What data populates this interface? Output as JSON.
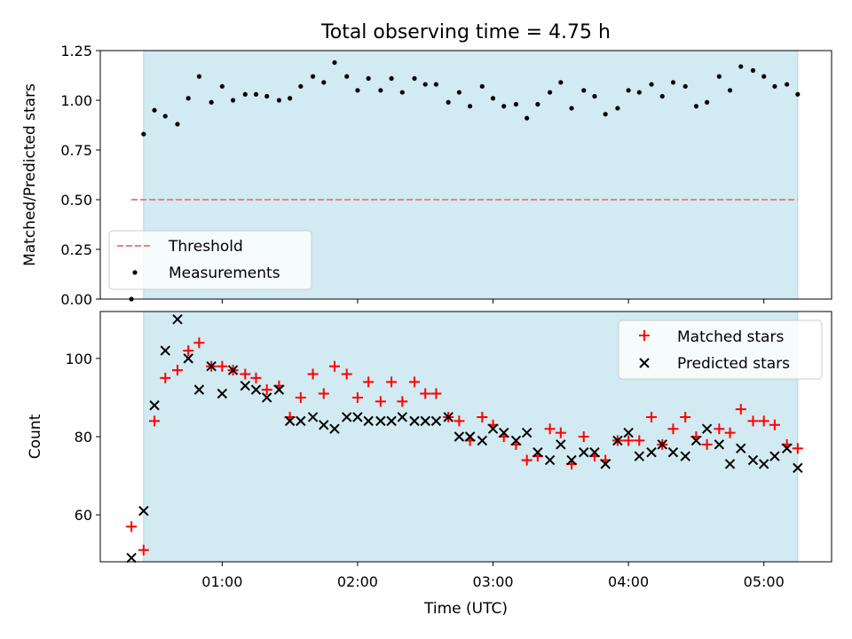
{
  "title": "Total observing time = 4.75 h",
  "colors": {
    "span": "#add8e6",
    "threshold": "#f08080",
    "measurement": "#000000",
    "matched": "#ff0000",
    "predicted": "#000000"
  },
  "chart_data": [
    {
      "type": "scatter",
      "panel": "top",
      "ylabel": "Matched/Predicted stars",
      "xlabel": "",
      "x_unit": "hours (UTC)",
      "xlim": [
        0.1,
        5.5
      ],
      "ylim": [
        0.0,
        1.25
      ],
      "yticks": [
        "0.00",
        "0.25",
        "0.50",
        "0.75",
        "1.00",
        "1.25"
      ],
      "shaded_span": [
        0.42,
        5.25
      ],
      "threshold": {
        "name": "Threshold",
        "y": 0.5,
        "x_range": [
          0.33,
          5.25
        ]
      },
      "legend": {
        "placement": "lower-left",
        "entries": [
          "Threshold",
          "Measurements"
        ]
      },
      "series": [
        {
          "name": "Measurements",
          "x": [
            0.33,
            0.42,
            0.5,
            0.58,
            0.67,
            0.75,
            0.83,
            0.92,
            1.0,
            1.08,
            1.17,
            1.25,
            1.33,
            1.42,
            1.5,
            1.58,
            1.67,
            1.75,
            1.83,
            1.92,
            2.0,
            2.08,
            2.17,
            2.25,
            2.33,
            2.42,
            2.5,
            2.58,
            2.67,
            2.75,
            2.83,
            2.92,
            3.0,
            3.08,
            3.17,
            3.25,
            3.33,
            3.42,
            3.5,
            3.58,
            3.67,
            3.75,
            3.83,
            3.92,
            4.0,
            4.08,
            4.17,
            4.25,
            4.33,
            4.42,
            4.5,
            4.58,
            4.67,
            4.75,
            4.83,
            4.92,
            5.0,
            5.08,
            5.17,
            5.25
          ],
          "y": [
            0.0,
            0.83,
            0.95,
            0.92,
            0.88,
            1.01,
            1.12,
            0.99,
            1.07,
            1.0,
            1.03,
            1.03,
            1.02,
            1.0,
            1.01,
            1.07,
            1.12,
            1.09,
            1.19,
            1.12,
            1.05,
            1.11,
            1.05,
            1.11,
            1.04,
            1.11,
            1.08,
            1.08,
            0.99,
            1.04,
            0.97,
            1.07,
            1.01,
            0.97,
            0.98,
            0.91,
            0.98,
            1.04,
            1.09,
            0.96,
            1.05,
            1.02,
            0.93,
            0.96,
            1.05,
            1.04,
            1.08,
            1.02,
            1.09,
            1.07,
            0.97,
            0.99,
            1.12,
            1.05,
            1.17,
            1.15,
            1.12,
            1.07,
            1.08,
            1.03
          ]
        }
      ]
    },
    {
      "type": "scatter",
      "panel": "bottom",
      "ylabel": "Count",
      "xlabel": "Time (UTC)",
      "x_unit": "hours (UTC)",
      "xlim": [
        0.1,
        5.5
      ],
      "ylim": [
        48,
        112
      ],
      "yticks": [
        "60",
        "80",
        "100"
      ],
      "xticks": [
        "01:00",
        "02:00",
        "03:00",
        "04:00",
        "05:00"
      ],
      "shaded_span": [
        0.42,
        5.25
      ],
      "legend": {
        "placement": "upper-right",
        "entries": [
          "Matched stars",
          "Predicted stars"
        ]
      },
      "series": [
        {
          "name": "Matched stars",
          "marker": "plus",
          "x": [
            0.33,
            0.42,
            0.5,
            0.58,
            0.67,
            0.75,
            0.83,
            0.92,
            1.0,
            1.08,
            1.17,
            1.25,
            1.33,
            1.42,
            1.5,
            1.58,
            1.67,
            1.75,
            1.83,
            1.92,
            2.0,
            2.08,
            2.17,
            2.25,
            2.33,
            2.42,
            2.5,
            2.58,
            2.67,
            2.75,
            2.83,
            2.92,
            3.0,
            3.08,
            3.17,
            3.25,
            3.33,
            3.42,
            3.5,
            3.58,
            3.67,
            3.75,
            3.83,
            3.92,
            4.0,
            4.08,
            4.17,
            4.25,
            4.33,
            4.42,
            4.5,
            4.58,
            4.67,
            4.75,
            4.83,
            4.92,
            5.0,
            5.08,
            5.17,
            5.25
          ],
          "y": [
            57,
            51,
            84,
            95,
            97,
            102,
            104,
            98,
            98,
            97,
            96,
            95,
            92,
            93,
            85,
            90,
            96,
            91,
            98,
            96,
            90,
            94,
            89,
            94,
            89,
            94,
            91,
            91,
            85,
            84,
            79,
            85,
            83,
            80,
            78,
            74,
            75,
            82,
            81,
            73,
            80,
            75,
            74,
            79,
            79,
            79,
            85,
            78,
            82,
            85,
            80,
            78,
            82,
            81,
            87,
            84,
            84,
            83,
            78,
            77
          ]
        },
        {
          "name": "Predicted stars",
          "marker": "x",
          "x": [
            0.33,
            0.42,
            0.5,
            0.58,
            0.67,
            0.75,
            0.83,
            0.92,
            1.0,
            1.08,
            1.17,
            1.25,
            1.33,
            1.42,
            1.5,
            1.58,
            1.67,
            1.75,
            1.83,
            1.92,
            2.0,
            2.08,
            2.17,
            2.25,
            2.33,
            2.42,
            2.5,
            2.58,
            2.67,
            2.75,
            2.83,
            2.92,
            3.0,
            3.08,
            3.17,
            3.25,
            3.33,
            3.42,
            3.5,
            3.58,
            3.67,
            3.75,
            3.83,
            3.92,
            4.0,
            4.08,
            4.17,
            4.25,
            4.33,
            4.42,
            4.5,
            4.58,
            4.67,
            4.75,
            4.83,
            4.92,
            5.0,
            5.08,
            5.17,
            5.25
          ],
          "y": [
            49,
            61,
            88,
            102,
            110,
            100,
            92,
            98,
            91,
            97,
            93,
            92,
            90,
            92,
            84,
            84,
            85,
            83,
            82,
            85,
            85,
            84,
            84,
            84,
            85,
            84,
            84,
            84,
            85,
            80,
            80,
            79,
            82,
            81,
            79,
            81,
            76,
            74,
            78,
            74,
            76,
            76,
            73,
            79,
            81,
            75,
            76,
            78,
            76,
            75,
            79,
            82,
            78,
            73,
            77,
            74,
            73,
            75,
            77,
            72
          ]
        }
      ]
    }
  ]
}
